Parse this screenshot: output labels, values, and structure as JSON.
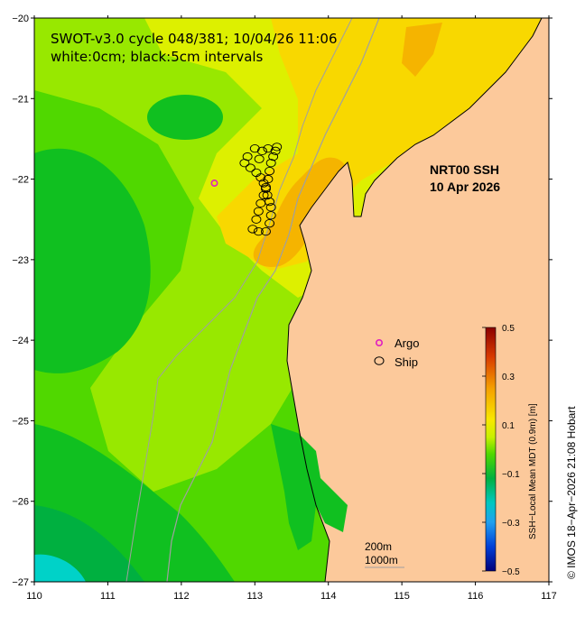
{
  "header": {
    "line1": "SWOT-v3.0 cycle 048/381; 10/04/26 11:06",
    "line2": "white:0cm; black:5cm intervals"
  },
  "product": {
    "title": "NRT00 SSH",
    "date": "10 Apr 2026"
  },
  "legend": {
    "argo": "Argo",
    "ship": "Ship",
    "argo_color": "#e020c0",
    "ship_color": "#000000"
  },
  "colorbar": {
    "label": "SSH−Local Mean MDT (0.9m) [m]",
    "ticks": [
      "0.5",
      "0.3",
      "0.1",
      "−0.1",
      "−0.3",
      "−0.5"
    ],
    "values": [
      0.5,
      0.3,
      0.1,
      -0.1,
      -0.3,
      -0.5
    ]
  },
  "scale": {
    "line1": "200m",
    "line2": "1000m"
  },
  "copyright": "© IMOS 18−Apr−2026 21:08 Hobart",
  "axes": {
    "x_ticks": [
      "110",
      "111",
      "112",
      "113",
      "114",
      "115",
      "116",
      "117"
    ],
    "y_ticks": [
      "−20",
      "−21",
      "−22",
      "−23",
      "−24",
      "−25",
      "−26",
      "−27"
    ],
    "lon_range": [
      110,
      117
    ],
    "lat_range": [
      -27,
      -20
    ]
  },
  "colors": {
    "land": "#fcc99b",
    "cyan": "#00d2c8",
    "green_dark": "#00b040",
    "green": "#10c020",
    "green_light": "#50d800",
    "lime": "#98e800",
    "yellow": "#ddf000",
    "gold": "#f8d800",
    "orange": "#f5b400",
    "coast": "#a0a0a0"
  },
  "markers": {
    "argo_count": 1,
    "ship_count": 30
  }
}
